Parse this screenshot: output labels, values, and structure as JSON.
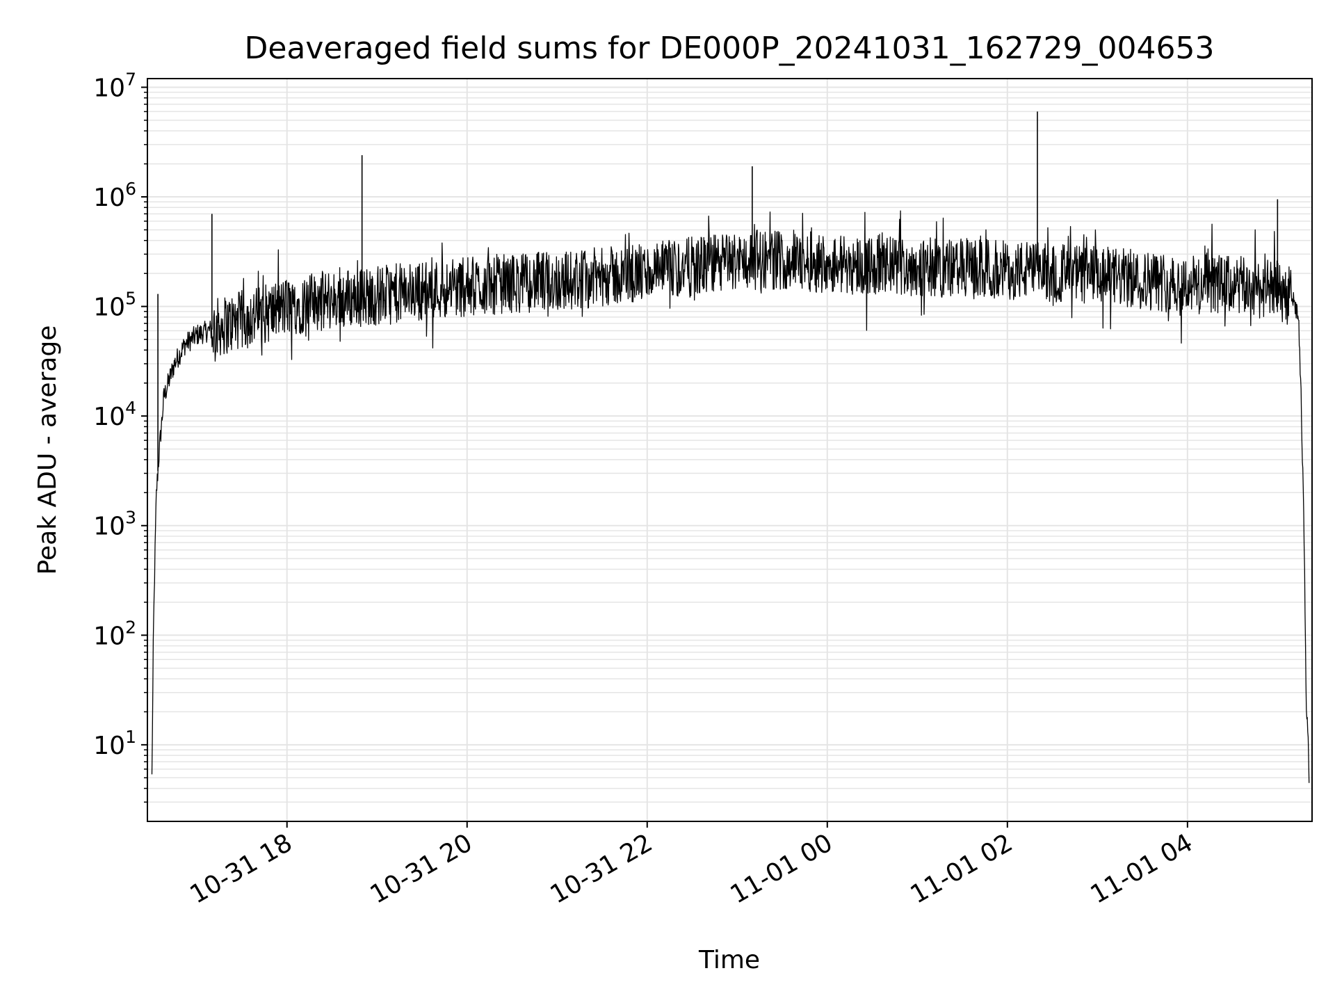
{
  "chart_data": {
    "type": "line",
    "title": "Deaveraged field sums for DE000P_20241031_162729_004653",
    "xlabel": "Time",
    "ylabel": "Peak ADU - average",
    "yscale": "log",
    "ylim": [
      2,
      12000000
    ],
    "xlim": [
      "2024-10-31 16:27",
      "2024-11-01 05:23"
    ],
    "grid": true,
    "grid_minor": true,
    "line_color": "#000000",
    "grid_color": "#e5e5e5",
    "x_ticks": [
      {
        "label": "10-31 18",
        "value": "2024-10-31 18:00"
      },
      {
        "label": "10-31 20",
        "value": "2024-10-31 20:00"
      },
      {
        "label": "10-31 22",
        "value": "2024-10-31 22:00"
      },
      {
        "label": "11-01 00",
        "value": "2024-11-01 00:00"
      },
      {
        "label": "11-01 02",
        "value": "2024-11-01 02:00"
      },
      {
        "label": "11-01 04",
        "value": "2024-11-01 04:00"
      }
    ],
    "y_ticks": [
      {
        "base": "10",
        "exp": "1",
        "value": 10
      },
      {
        "base": "10",
        "exp": "2",
        "value": 100
      },
      {
        "base": "10",
        "exp": "3",
        "value": 1000
      },
      {
        "base": "10",
        "exp": "4",
        "value": 10000
      },
      {
        "base": "10",
        "exp": "5",
        "value": 100000
      },
      {
        "base": "10",
        "exp": "6",
        "value": 1000000
      },
      {
        "base": "10",
        "exp": "7",
        "value": 10000000
      }
    ],
    "series": [
      {
        "x": [
          "2024-10-31 16:30",
          "2024-10-31 16:31",
          "2024-10-31 16:32",
          "2024-10-31 16:33",
          "2024-10-31 16:35",
          "2024-10-31 16:38",
          "2024-10-31 16:45",
          "2024-10-31 16:52",
          "2024-10-31 17:00",
          "2024-10-31 17:15",
          "2024-10-31 17:30",
          "2024-10-31 17:45",
          "2024-10-31 18:00",
          "2024-10-31 18:20",
          "2024-10-31 18:40",
          "2024-10-31 19:00",
          "2024-10-31 19:20",
          "2024-10-31 19:40",
          "2024-10-31 20:00",
          "2024-10-31 20:20",
          "2024-10-31 20:40",
          "2024-10-31 21:00",
          "2024-10-31 21:20",
          "2024-10-31 21:40",
          "2024-10-31 22:00",
          "2024-10-31 22:20",
          "2024-10-31 22:40",
          "2024-10-31 23:00",
          "2024-10-31 23:20",
          "2024-10-31 23:40",
          "2024-11-01 00:00",
          "2024-11-01 00:20",
          "2024-11-01 00:40",
          "2024-11-01 01:00",
          "2024-11-01 01:20",
          "2024-11-01 01:40",
          "2024-11-01 02:00",
          "2024-11-01 02:20",
          "2024-11-01 02:40",
          "2024-11-01 03:00",
          "2024-11-01 03:20",
          "2024-11-01 03:40",
          "2024-11-01 04:00",
          "2024-11-01 04:20",
          "2024-11-01 04:40",
          "2024-11-01 05:00",
          "2024-11-01 05:10",
          "2024-11-01 05:14",
          "2024-11-01 05:16",
          "2024-11-01 05:18",
          "2024-11-01 05:19",
          "2024-11-01 05:20",
          "2024-11-01 05:21"
        ],
        "y": [
          5,
          100,
          500,
          2000,
          5000,
          15000,
          30000,
          45000,
          55000,
          65000,
          75000,
          85000,
          100000,
          110000,
          120000,
          125000,
          135000,
          145000,
          150000,
          160000,
          165000,
          170000,
          180000,
          190000,
          200000,
          220000,
          240000,
          260000,
          270000,
          260000,
          250000,
          240000,
          235000,
          230000,
          225000,
          220000,
          215000,
          210000,
          200000,
          190000,
          180000,
          170000,
          160000,
          160000,
          150000,
          140000,
          120000,
          80000,
          10000,
          500,
          30,
          15,
          5
        ]
      }
    ],
    "spikes": [
      {
        "x": "2024-10-31 16:34",
        "y": 130000
      },
      {
        "x": "2024-10-31 17:10",
        "y": 700000
      },
      {
        "x": "2024-10-31 18:50",
        "y": 2400000
      },
      {
        "x": "2024-10-31 23:10",
        "y": 1900000
      },
      {
        "x": "2024-11-01 02:20",
        "y": 6000000
      },
      {
        "x": "2024-11-01 05:00",
        "y": 950000
      }
    ]
  }
}
